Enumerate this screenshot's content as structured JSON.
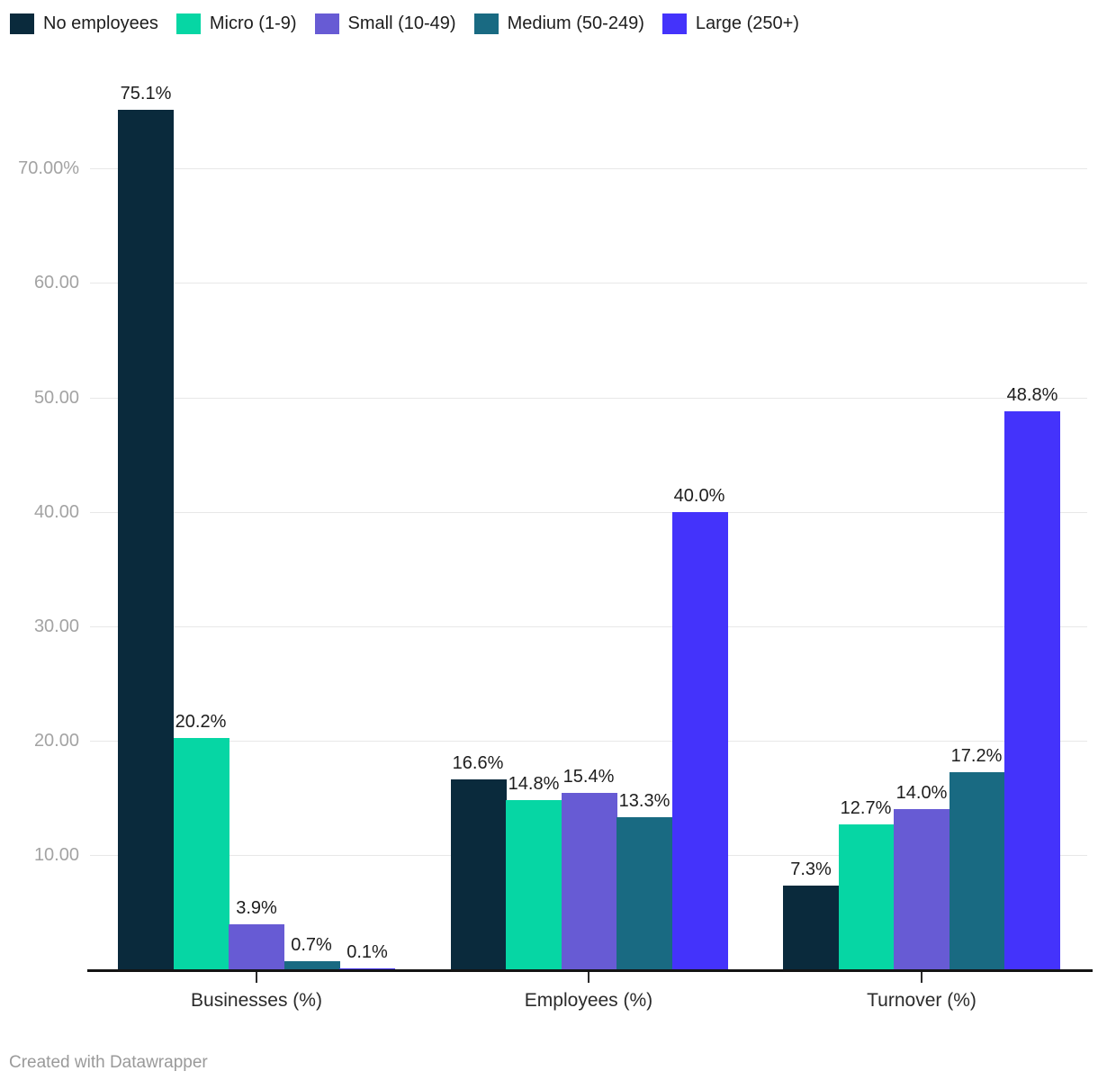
{
  "chart_data": {
    "type": "bar",
    "title": "",
    "categories": [
      "Businesses (%)",
      "Employees (%)",
      "Turnover (%)"
    ],
    "series": [
      {
        "name": "No employees",
        "color": "#0a2a3c",
        "values": [
          75.1,
          16.6,
          7.3
        ],
        "labels": [
          "75.1%",
          "16.6%",
          "7.3%"
        ]
      },
      {
        "name": "Micro (1-9)",
        "color": "#06d6a4",
        "values": [
          20.2,
          14.8,
          12.7
        ],
        "labels": [
          "20.2%",
          "14.8%",
          "12.7%"
        ]
      },
      {
        "name": "Small (10-49)",
        "color": "#675bd4",
        "values": [
          3.9,
          15.4,
          14.0
        ],
        "labels": [
          "3.9%",
          "15.4%",
          "14.0%"
        ]
      },
      {
        "name": "Medium (50-249)",
        "color": "#196a82",
        "values": [
          0.7,
          13.3,
          17.2
        ],
        "labels": [
          "0.7%",
          "13.3%",
          "17.2%"
        ]
      },
      {
        "name": "Large (250+)",
        "color": "#4433fb",
        "values": [
          0.1,
          40.0,
          48.8
        ],
        "labels": [
          "0.1%",
          "40.0%",
          "48.8%"
        ]
      }
    ],
    "y_axis": {
      "range": [
        0,
        75.5
      ],
      "grid": true,
      "ticks": [
        {
          "value": 10,
          "label": "10.00"
        },
        {
          "value": 20,
          "label": "20.00"
        },
        {
          "value": 30,
          "label": "30.00"
        },
        {
          "value": 40,
          "label": "40.00"
        },
        {
          "value": 50,
          "label": "50.00"
        },
        {
          "value": 60,
          "label": "60.00"
        },
        {
          "value": 70,
          "label": "70.00%"
        }
      ]
    },
    "legend_position": "top"
  },
  "colors": {
    "background": "#ffffff",
    "gridline": "#e8e8e8",
    "axis_line": "#141414",
    "y_tick_label": "#a3a3a3",
    "value_label": "#1d1d1d",
    "category_label": "#2b2b2b",
    "footer_text": "#9a9a9a"
  },
  "footer": {
    "text": "Created with Datawrapper"
  }
}
